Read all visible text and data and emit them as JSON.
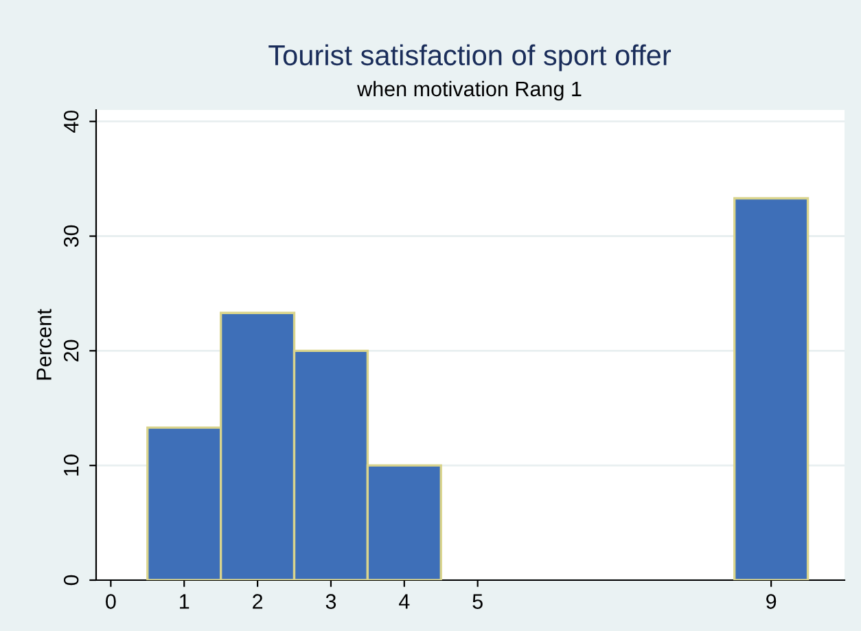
{
  "chart_data": {
    "type": "histogram",
    "title": "Tourist satisfaction of sport offer",
    "subtitle": "when motivation Rang 1",
    "ylabel": "Percent",
    "bins": [
      0.5,
      1.5,
      2.5,
      3.5,
      4.5,
      5.5,
      6.5,
      7.5,
      8.5,
      9.5
    ],
    "values": [
      13.3,
      23.3,
      20,
      10,
      0,
      0,
      0,
      0,
      33.3
    ],
    "color": "#3e6fb8",
    "xlim": [
      -0.2,
      10
    ],
    "xticks": [
      0,
      1,
      2,
      3,
      4,
      5,
      9
    ],
    "ylim": [
      0,
      41
    ],
    "yticks": [
      0,
      10,
      20,
      30,
      40
    ],
    "grid": "y"
  }
}
